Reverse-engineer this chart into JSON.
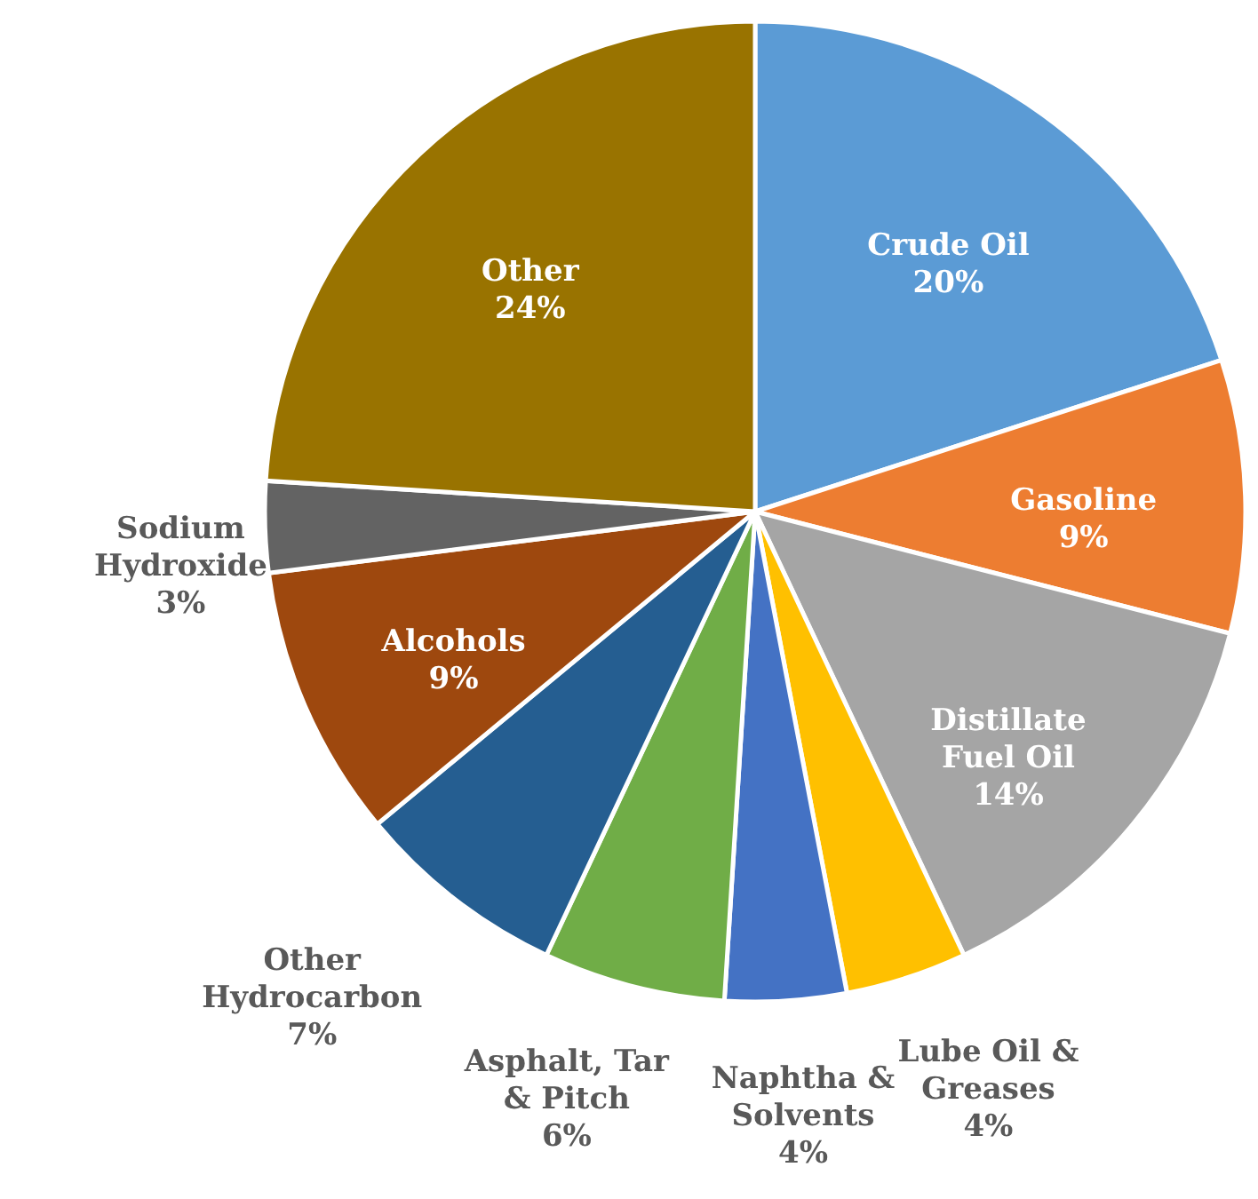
{
  "chart_data": {
    "type": "pie",
    "categories": [
      "Crude Oil",
      "Gasoline",
      "Distillate Fuel Oil",
      "Lube Oil & Greases",
      "Naphtha & Solvents",
      "Asphalt, Tar & Pitch",
      "Other Hydrocarbon",
      "Alcohols",
      "Sodium Hydroxide",
      "Other"
    ],
    "values": [
      20,
      9,
      14,
      4,
      4,
      6,
      7,
      9,
      3,
      24
    ],
    "colors": [
      "#5b9bd5",
      "#ed7d31",
      "#a5a5a5",
      "#ffc000",
      "#4472c4",
      "#70ad47",
      "#255e91",
      "#9e480e",
      "#636363",
      "#997300"
    ],
    "value_labels": [
      "20%",
      "9%",
      "14%",
      "4%",
      "4%",
      "6%",
      "7%",
      "9%",
      "3%",
      "24%"
    ]
  }
}
